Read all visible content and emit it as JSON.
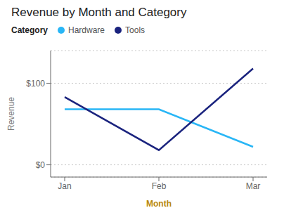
{
  "chart_data": {
    "type": "line",
    "title": "Revenue by Month and Category",
    "x_label": "Month",
    "y_label": "Revenue",
    "legend_title": "Category",
    "categories": [
      "Jan",
      "Feb",
      "Mar"
    ],
    "series": [
      {
        "name": "Hardware",
        "color": "#29B6F6",
        "values": [
          68,
          68,
          22
        ]
      },
      {
        "name": "Tools",
        "color": "#1A237E",
        "values": [
          83,
          18,
          118
        ]
      }
    ],
    "ylim": [
      -15,
      140
    ],
    "yticks": [
      {
        "value": 0,
        "label": "$0"
      },
      {
        "value": 100,
        "label": "$100"
      }
    ],
    "grid": true,
    "legend": "top"
  }
}
